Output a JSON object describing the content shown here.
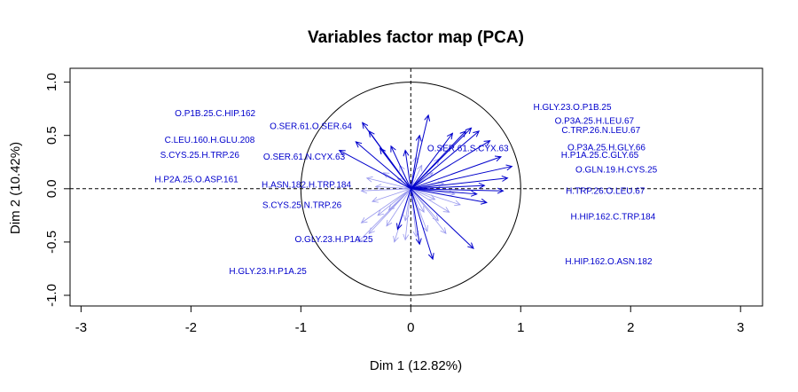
{
  "chart_data": {
    "type": "scatter",
    "title": "Variables factor map (PCA)",
    "xlabel": "Dim 1 (12.82%)",
    "ylabel": "Dim 2 (10.42%)",
    "xlim": [
      -3.1,
      3.2
    ],
    "ylim": [
      -1.1,
      1.13
    ],
    "xticks": [
      "-3",
      "-2",
      "-1",
      "0",
      "1",
      "2",
      "3"
    ],
    "yticks": [
      "-1.0",
      "-0.5",
      "0.0",
      "0.5",
      "1.0"
    ],
    "xtick_values": [
      -3,
      -2,
      -1,
      0,
      1,
      2,
      3
    ],
    "ytick_values": [
      -1.0,
      -0.5,
      0.0,
      0.5,
      1.0
    ],
    "reference_lines": {
      "x": 0,
      "y": 0,
      "style": "dashed"
    },
    "unit_circle": true,
    "arrow_color": "#0000cc",
    "faint_arrow_color": "#9999ee",
    "labeled_variables": [
      {
        "name": "O.P1B.25.C.HIP.162",
        "x": -1.78,
        "y": 0.71
      },
      {
        "name": "O.SER.61.O.SER.64",
        "x": -0.91,
        "y": 0.59
      },
      {
        "name": "C.LEU.160.H.GLU.208",
        "x": -1.83,
        "y": 0.46
      },
      {
        "name": "S.CYS.25.H.TRP.26",
        "x": -1.92,
        "y": 0.32
      },
      {
        "name": "O.SER.61.N.CYX.63",
        "x": -0.97,
        "y": 0.3
      },
      {
        "name": "H.P2A.25.O.ASP.161",
        "x": -1.95,
        "y": 0.09
      },
      {
        "name": "H.ASN.182.H.TRP.184",
        "x": -0.95,
        "y": 0.04
      },
      {
        "name": "S.CYS.25.N.TRP.26",
        "x": -0.99,
        "y": -0.15
      },
      {
        "name": "O.GLY.23.H.P1A.25",
        "x": -0.7,
        "y": -0.47
      },
      {
        "name": "H.GLY.23.H.P1A.25",
        "x": -1.3,
        "y": -0.77
      },
      {
        "name": "H.GLY.23.O.P1B.25",
        "x": 1.47,
        "y": 0.77
      },
      {
        "name": "O.P3A.25.H.LEU.67",
        "x": 1.67,
        "y": 0.64
      },
      {
        "name": "C.TRP.26.N.LEU.67",
        "x": 1.73,
        "y": 0.55
      },
      {
        "name": "O.SER.61.S.CYX.63",
        "x": 0.52,
        "y": 0.38
      },
      {
        "name": "O.P3A.25.H.GLY.66",
        "x": 1.78,
        "y": 0.39
      },
      {
        "name": "H.P1A.25.C.GLY.65",
        "x": 1.72,
        "y": 0.32
      },
      {
        "name": "O.GLN.19.H.CYS.25",
        "x": 1.87,
        "y": 0.18
      },
      {
        "name": "H.TRP.26.O.LEU.67",
        "x": 1.77,
        "y": -0.02
      },
      {
        "name": "H.HIP.162.C.TRP.184",
        "x": 1.84,
        "y": -0.26
      },
      {
        "name": "H.HIP.162.O.ASN.182",
        "x": 1.8,
        "y": -0.68
      }
    ],
    "arrows": [
      {
        "x": -0.44,
        "y": 0.62
      },
      {
        "x": -0.38,
        "y": 0.54
      },
      {
        "x": -0.5,
        "y": 0.44
      },
      {
        "x": -0.65,
        "y": 0.36
      },
      {
        "x": -0.28,
        "y": 0.38
      },
      {
        "x": -0.18,
        "y": 0.4
      },
      {
        "x": -0.05,
        "y": 0.36
      },
      {
        "x": 0.16,
        "y": 0.69
      },
      {
        "x": 0.08,
        "y": 0.5
      },
      {
        "x": 0.38,
        "y": 0.52
      },
      {
        "x": 0.5,
        "y": 0.54
      },
      {
        "x": 0.55,
        "y": 0.57
      },
      {
        "x": 0.62,
        "y": 0.54
      },
      {
        "x": 0.72,
        "y": 0.45
      },
      {
        "x": 0.82,
        "y": 0.3
      },
      {
        "x": 0.92,
        "y": 0.21
      },
      {
        "x": 0.88,
        "y": 0.1
      },
      {
        "x": 0.67,
        "y": 0.03
      },
      {
        "x": 0.84,
        "y": -0.02
      },
      {
        "x": 0.6,
        "y": -0.05
      },
      {
        "x": 0.69,
        "y": -0.13
      },
      {
        "x": 0.57,
        "y": -0.56
      },
      {
        "x": 0.2,
        "y": -0.66
      },
      {
        "x": 0.08,
        "y": -0.52
      },
      {
        "x": -0.12,
        "y": -0.38
      }
    ],
    "faint_arrows": [
      {
        "x": -0.4,
        "y": 0.1
      },
      {
        "x": -0.45,
        "y": -0.02
      },
      {
        "x": -0.35,
        "y": -0.12
      },
      {
        "x": -0.3,
        "y": -0.25
      },
      {
        "x": -0.22,
        "y": -0.35
      },
      {
        "x": -0.45,
        "y": -0.32
      },
      {
        "x": -0.48,
        "y": -0.5
      },
      {
        "x": -0.15,
        "y": -0.5
      },
      {
        "x": -0.05,
        "y": -0.48
      },
      {
        "x": 0.05,
        "y": -0.45
      },
      {
        "x": 0.15,
        "y": -0.4
      },
      {
        "x": 0.25,
        "y": -0.3
      },
      {
        "x": 0.35,
        "y": -0.22
      },
      {
        "x": 0.45,
        "y": -0.15
      },
      {
        "x": 0.4,
        "y": -0.05
      },
      {
        "x": 0.3,
        "y": 0.05
      },
      {
        "x": 0.2,
        "y": 0.15
      },
      {
        "x": 0.1,
        "y": 0.22
      },
      {
        "x": -0.1,
        "y": 0.22
      },
      {
        "x": -0.25,
        "y": 0.15
      },
      {
        "x": -0.32,
        "y": 0.02
      },
      {
        "x": -0.2,
        "y": -0.2
      },
      {
        "x": 0.12,
        "y": -0.22
      },
      {
        "x": 0.22,
        "y": -0.1
      },
      {
        "x": 0.26,
        "y": 0.28
      },
      {
        "x": -0.05,
        "y": -0.3
      },
      {
        "x": 0.05,
        "y": 0.3
      },
      {
        "x": -0.12,
        "y": 0.1
      },
      {
        "x": 0.32,
        "y": -0.42
      },
      {
        "x": -0.38,
        "y": -0.42
      }
    ]
  }
}
